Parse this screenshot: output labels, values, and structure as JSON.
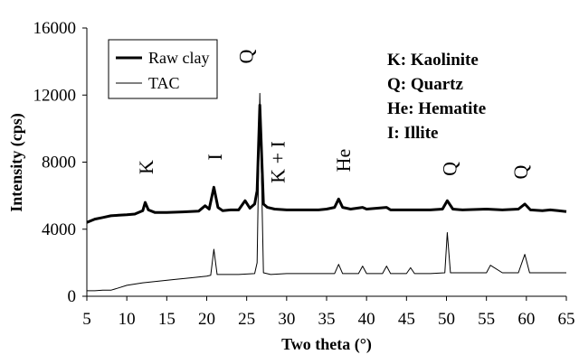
{
  "chart_data": {
    "type": "line",
    "xlabel": "Two theta (°)",
    "ylabel": "Intensity (cps)",
    "xlim": [
      5,
      65
    ],
    "ylim": [
      0,
      16000
    ],
    "x_ticks": [
      "5",
      "10",
      "15",
      "20",
      "25",
      "30",
      "35",
      "40",
      "45",
      "50",
      "55",
      "60",
      "65"
    ],
    "y_ticks": [
      "0",
      "4000",
      "8000",
      "12000",
      "16000"
    ],
    "grid": false,
    "legend_position": "top-left",
    "series": [
      {
        "name": "Raw clay",
        "color": "#000000",
        "style": "thick",
        "x": [
          5,
          6,
          7,
          8,
          9,
          10,
          11,
          12,
          12.3,
          12.7,
          13.5,
          15,
          17,
          19,
          19.8,
          20.3,
          20.9,
          21.4,
          22,
          23,
          24,
          24.8,
          25.4,
          26,
          26.3,
          26.65,
          27.1,
          27.6,
          28.5,
          30,
          32,
          34,
          35,
          36,
          36.5,
          37,
          38,
          39.5,
          40,
          42.5,
          43,
          45,
          48,
          49.5,
          50.1,
          50.8,
          52,
          55,
          57,
          59,
          59.8,
          60.5,
          62,
          63,
          64,
          65
        ],
        "y": [
          4400,
          4600,
          4700,
          4800,
          4830,
          4860,
          4900,
          5100,
          5600,
          5150,
          5000,
          5000,
          5030,
          5080,
          5400,
          5200,
          6500,
          5300,
          5100,
          5150,
          5150,
          5700,
          5250,
          5500,
          6300,
          11400,
          5500,
          5300,
          5200,
          5150,
          5150,
          5150,
          5200,
          5300,
          5800,
          5300,
          5200,
          5300,
          5200,
          5300,
          5150,
          5150,
          5150,
          5200,
          5700,
          5200,
          5150,
          5200,
          5150,
          5200,
          5500,
          5150,
          5100,
          5150,
          5100,
          5050
        ]
      },
      {
        "name": "TAC",
        "color": "#000000",
        "style": "thin",
        "x": [
          5,
          6,
          7,
          8,
          9,
          10,
          12,
          14,
          16,
          18,
          20,
          20.5,
          20.9,
          21.3,
          22,
          24,
          26,
          26.3,
          26.65,
          27.1,
          28,
          30,
          32,
          34,
          36,
          36.5,
          37,
          39,
          39.5,
          40,
          42,
          42.5,
          43,
          45,
          45.5,
          46,
          48,
          49.8,
          50.1,
          50.5,
          52,
          54,
          55,
          55.5,
          57,
          59,
          59.8,
          60.4,
          62,
          64,
          65
        ],
        "y": [
          330,
          330,
          360,
          360,
          500,
          650,
          800,
          900,
          1000,
          1100,
          1200,
          1250,
          2800,
          1300,
          1300,
          1300,
          1350,
          2000,
          12100,
          1400,
          1300,
          1350,
          1350,
          1350,
          1350,
          1900,
          1350,
          1350,
          1800,
          1350,
          1350,
          1800,
          1350,
          1350,
          1700,
          1350,
          1350,
          1400,
          3800,
          1400,
          1400,
          1400,
          1400,
          1850,
          1400,
          1400,
          2500,
          1400,
          1400,
          1400,
          1400
        ]
      }
    ],
    "peak_labels": [
      {
        "text": "K",
        "x": 12.4,
        "y": 7700
      },
      {
        "text": "I",
        "x": 21.0,
        "y": 8300
      },
      {
        "text": "Q",
        "x": 24.9,
        "y": 14300
      },
      {
        "text": "K + I",
        "x": 28.9,
        "y": 8000
      },
      {
        "text": "He",
        "x": 37.1,
        "y": 8100
      },
      {
        "text": "Q",
        "x": 50.4,
        "y": 7600
      },
      {
        "text": "Q",
        "x": 59.3,
        "y": 7400
      }
    ],
    "key": [
      "K: Kaolinite",
      "Q: Quartz",
      "He: Hematite",
      "I: Illite"
    ]
  }
}
